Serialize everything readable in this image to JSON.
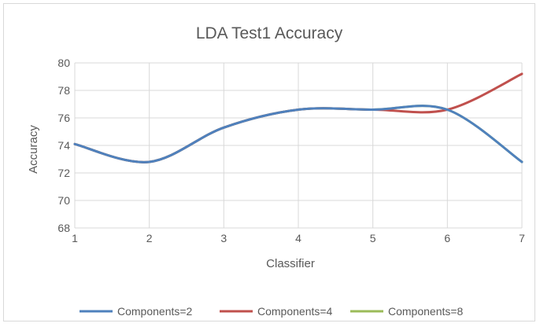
{
  "chart_data": {
    "type": "line",
    "title": "LDA Test1 Accuracy",
    "xlabel": "Classifier",
    "ylabel": "Accuracy",
    "x": [
      1,
      2,
      3,
      4,
      5,
      6,
      7
    ],
    "xlim": [
      1,
      7
    ],
    "ylim": [
      68,
      80
    ],
    "x_ticks": [
      "1",
      "2",
      "3",
      "4",
      "5",
      "6",
      "7"
    ],
    "y_ticks": [
      "68",
      "70",
      "72",
      "74",
      "76",
      "78",
      "80"
    ],
    "grid": true,
    "legend_position": "bottom",
    "smooth": true,
    "series": [
      {
        "name": "Components=2",
        "color": "#4f81bd",
        "values": [
          74.1,
          72.8,
          75.3,
          76.6,
          76.6,
          76.6,
          72.8
        ]
      },
      {
        "name": "Components=4",
        "color": "#c0504d",
        "values": [
          74.1,
          72.8,
          75.3,
          76.6,
          76.6,
          76.6,
          79.2
        ]
      },
      {
        "name": "Components=8",
        "color": "#9bbb59",
        "values": [
          74.1,
          72.8,
          75.3,
          76.6,
          76.6,
          76.6,
          72.8
        ]
      }
    ]
  }
}
